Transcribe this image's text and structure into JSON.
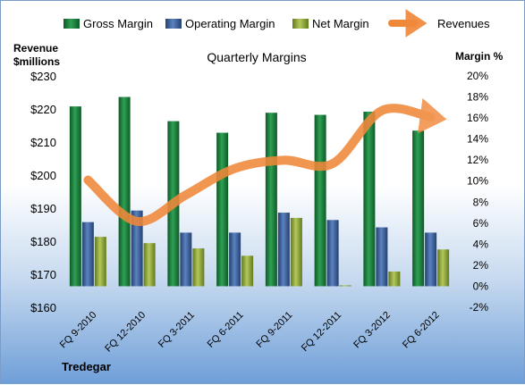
{
  "chart_data": {
    "type": "bar",
    "title": "Quarterly Margins",
    "company": "Tredegar",
    "categories": [
      "FQ 9-2010",
      "FQ 12-2010",
      "FQ 3-2011",
      "FQ 6-2011",
      "FQ 9-2011",
      "FQ 12-2011",
      "FQ 3-2012",
      "FQ 6-2012"
    ],
    "left_axis": {
      "label_line1": "Revenue",
      "label_line2": "$millions",
      "range": [
        160,
        230
      ],
      "ticks": [
        "$160",
        "$170",
        "$180",
        "$190",
        "$200",
        "$210",
        "$220",
        "$230"
      ]
    },
    "right_axis": {
      "label": "Margin %",
      "range": [
        -2,
        20
      ],
      "ticks": [
        "-2%",
        "0%",
        "2%",
        "4%",
        "6%",
        "8%",
        "10%",
        "12%",
        "14%",
        "16%",
        "18%",
        "20%"
      ]
    },
    "legend_position": "top",
    "grid": false,
    "series": [
      {
        "name": "Gross Margin",
        "type": "bar",
        "axis": "right",
        "color": "#1f7a3a",
        "values": [
          17.1,
          18.0,
          15.7,
          14.6,
          16.5,
          16.3,
          16.6,
          14.8
        ]
      },
      {
        "name": "Operating Margin",
        "type": "bar",
        "axis": "right",
        "color": "#3a5f9a",
        "values": [
          6.1,
          7.2,
          5.1,
          5.1,
          7.0,
          6.3,
          5.6,
          5.1
        ]
      },
      {
        "name": "Net Margin",
        "type": "bar",
        "axis": "right",
        "color": "#8fa63a",
        "values": [
          4.7,
          4.1,
          3.6,
          2.9,
          6.5,
          0.0,
          1.4,
          3.5
        ]
      },
      {
        "name": "Revenues",
        "type": "line",
        "axis": "left",
        "color": "#f0883a",
        "values": [
          198.5,
          186.0,
          194.0,
          202.0,
          204.5,
          203.5,
          219.5,
          217.5
        ]
      }
    ]
  }
}
